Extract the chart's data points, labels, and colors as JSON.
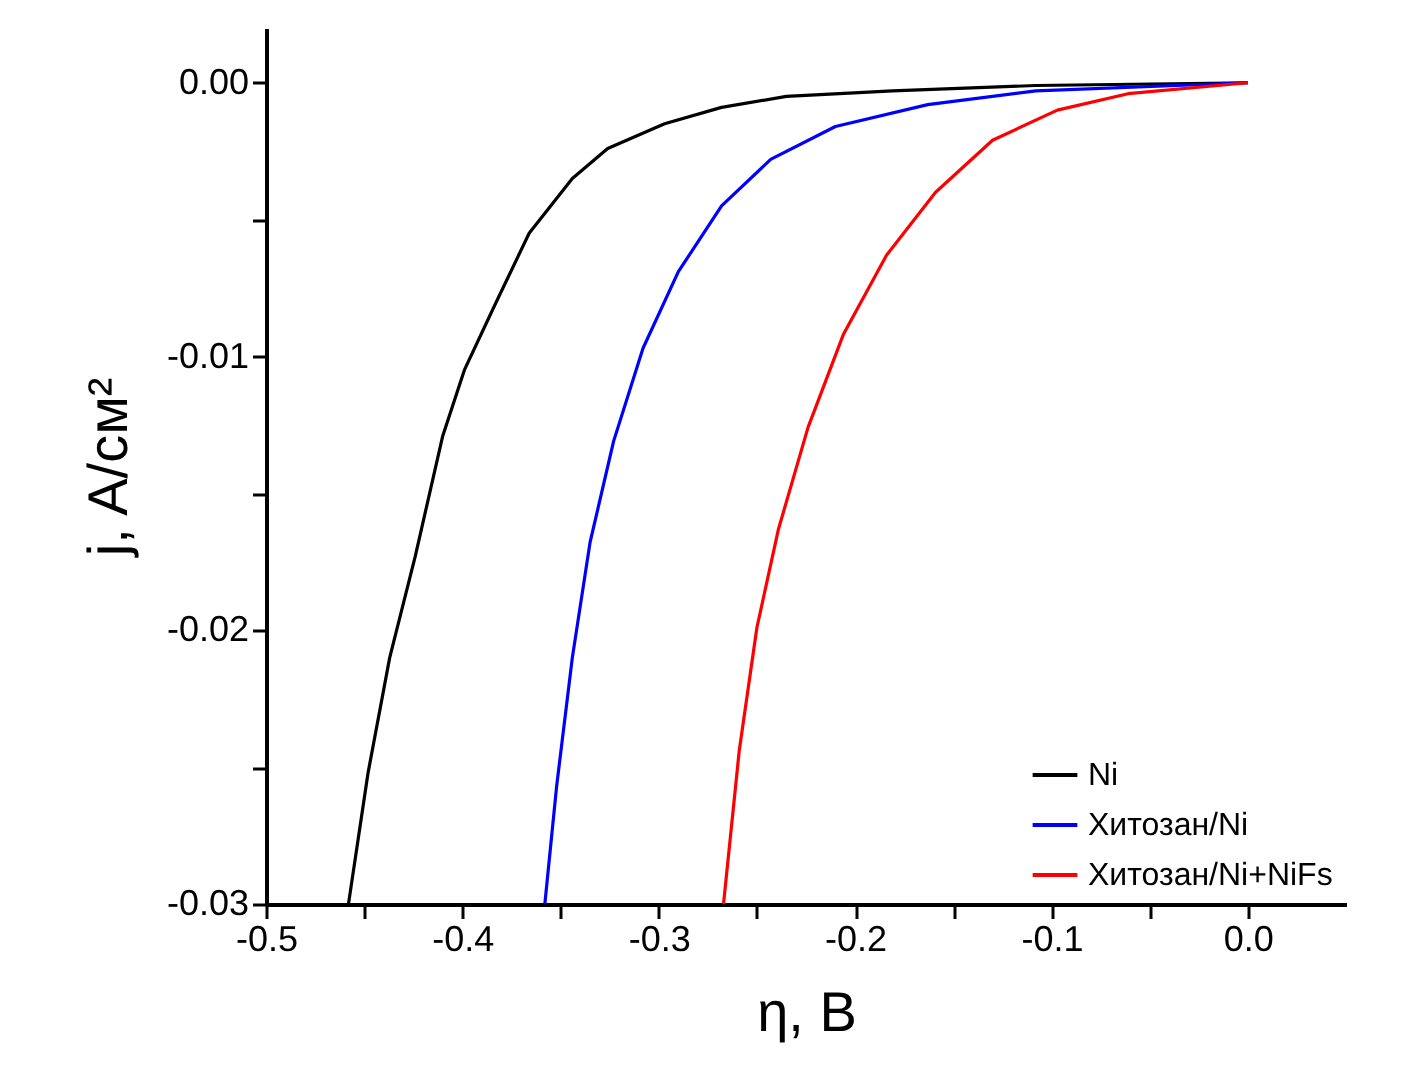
{
  "chart_data": {
    "type": "line",
    "xlabel": "η, B",
    "ylabel": "j, A/см²",
    "xlim": [
      -0.5,
      0.05
    ],
    "ylim": [
      -0.03,
      0.002
    ],
    "xticks": [
      {
        "value": -0.5,
        "label": "-0.5"
      },
      {
        "value": -0.45,
        "label": null
      },
      {
        "value": -0.4,
        "label": "-0.4"
      },
      {
        "value": -0.35,
        "label": null
      },
      {
        "value": -0.3,
        "label": "-0.3"
      },
      {
        "value": -0.25,
        "label": null
      },
      {
        "value": -0.2,
        "label": "-0.2"
      },
      {
        "value": -0.15,
        "label": null
      },
      {
        "value": -0.1,
        "label": "-0.1"
      },
      {
        "value": -0.05,
        "label": null
      },
      {
        "value": 0,
        "label": "0.0"
      }
    ],
    "yticks": [
      {
        "value": -0.03,
        "label": "-0.03"
      },
      {
        "value": -0.025,
        "label": null
      },
      {
        "value": -0.02,
        "label": "-0.02"
      },
      {
        "value": -0.015,
        "label": null
      },
      {
        "value": -0.01,
        "label": "-0.01"
      },
      {
        "value": -0.005,
        "label": null
      },
      {
        "value": 0,
        "label": "0.00"
      }
    ],
    "legend": "bottom right",
    "series": [
      {
        "name": "Ni",
        "color": "#000000",
        "x": [
          -0.458,
          -0.448,
          -0.437,
          -0.424,
          -0.41,
          -0.399,
          -0.384,
          -0.366,
          -0.344,
          -0.326,
          -0.297,
          -0.268,
          -0.235,
          -0.181,
          -0.108,
          0
        ],
        "values": [
          -0.03,
          -0.0252,
          -0.021,
          -0.0173,
          -0.0129,
          -0.0105,
          -0.0082,
          -0.0055,
          -0.0035,
          -0.0024,
          -0.0015,
          -0.0009,
          -0.0005,
          -0.0003,
          -0.0001,
          0
        ]
      },
      {
        "name": "Хитозан/Ni",
        "color": "#0000ff",
        "x": [
          -0.358,
          -0.352,
          -0.344,
          -0.335,
          -0.323,
          -0.308,
          -0.29,
          -0.268,
          -0.243,
          -0.21,
          -0.163,
          -0.108,
          0
        ],
        "values": [
          -0.03,
          -0.0257,
          -0.021,
          -0.0168,
          -0.0131,
          -0.0097,
          -0.0069,
          -0.0045,
          -0.0028,
          -0.0016,
          -0.0008,
          -0.0003,
          0
        ]
      },
      {
        "name": "Хитозан/Ni+NiFs",
        "color": "#ff0000",
        "x": [
          -0.267,
          -0.259,
          -0.25,
          -0.239,
          -0.224,
          -0.206,
          -0.184,
          -0.159,
          -0.13,
          -0.097,
          -0.061,
          0
        ],
        "values": [
          -0.03,
          -0.0244,
          -0.0199,
          -0.0163,
          -0.0126,
          -0.0092,
          -0.0063,
          -0.004,
          -0.0021,
          -0.001,
          -0.0004,
          0
        ]
      }
    ]
  }
}
